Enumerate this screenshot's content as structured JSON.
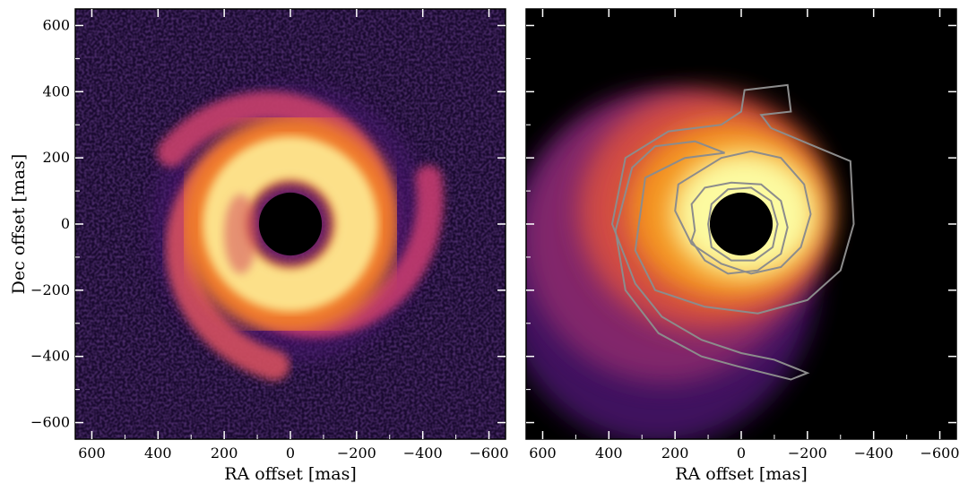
{
  "chart_data": [
    {
      "type": "heatmap",
      "panel": "left",
      "description_of_content": "scattered-light intensity image",
      "xlabel": "RA offset [mas]",
      "ylabel": "Dec offset [mas]",
      "xlim": [
        650,
        -650
      ],
      "ylim": [
        -650,
        650
      ],
      "x_ticks": [
        600,
        400,
        200,
        0,
        -200,
        -400,
        -600
      ],
      "x_tick_labels": [
        "600",
        "400",
        "200",
        "0",
        "−200",
        "−400",
        "−600"
      ],
      "y_ticks": [
        600,
        400,
        200,
        0,
        -200,
        -400,
        -600
      ],
      "y_tick_labels": [
        "600",
        "400",
        "200",
        "0",
        "−200",
        "−400",
        "−600"
      ],
      "colormap": "inferno",
      "mask_radius": 95,
      "disk_ring_radius": 260,
      "spiral_arms": 3
    },
    {
      "type": "heatmap",
      "panel": "right",
      "xlabel": "RA offset [mas]",
      "ylabel": "",
      "xlim": [
        650,
        -650
      ],
      "ylim": [
        -650,
        650
      ],
      "x_ticks": [
        600,
        400,
        200,
        0,
        -200,
        -400,
        -600
      ],
      "x_tick_labels": [
        "600",
        "400",
        "200",
        "0",
        "−200",
        "−400",
        "−600"
      ],
      "y_ticks": [
        600,
        400,
        200,
        0,
        -200,
        -400,
        -600
      ],
      "colormap": "inferno",
      "mask_radius": 95,
      "contour_color": "#8c8c8c",
      "contour_levels": 3
    }
  ],
  "colors": {
    "mask": "#000000",
    "contour": "#8c8c8c",
    "background_left": "#1a0a30",
    "background_right": "#000000"
  }
}
